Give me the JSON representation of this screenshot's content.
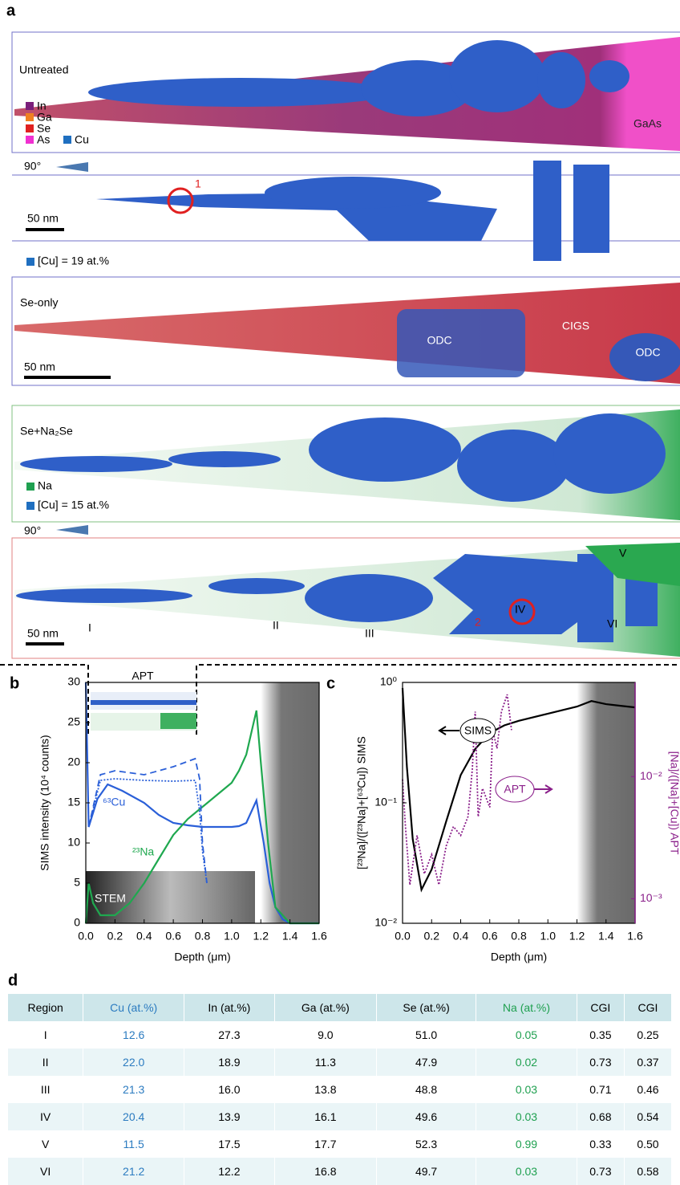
{
  "panel_a": {
    "label": "a",
    "untreated": {
      "title": "Untreated",
      "legend": [
        "In",
        "Ga",
        "Se",
        "As",
        "Cu"
      ],
      "substrate": "GaAs"
    },
    "rotation_1": "90°",
    "marker_1": "1",
    "scale_1": "50 nm",
    "cu_iso_1": "[Cu] = 19 at.%",
    "se_only": {
      "title": "Se-only",
      "labels": [
        "ODC",
        "CIGS",
        "ODC"
      ],
      "scale": "50 nm"
    },
    "se_na": {
      "title": "Se+Na₂Se",
      "legend": [
        "Na",
        "[Cu] = 15 at.%"
      ],
      "rotation": "90°",
      "regions": [
        "I",
        "II",
        "III",
        "IV",
        "V",
        "VI"
      ],
      "marker": "2",
      "scale": "50 nm"
    }
  },
  "chart_data": [
    {
      "type": "line",
      "label": "b",
      "xlabel": "Depth (μm)",
      "ylabel": "SIMS intensity (10⁴ counts)",
      "xlim": [
        0,
        1.6
      ],
      "xticks": [
        {
          "value": 0,
          "label": "0.0"
        },
        0.2,
        0.4,
        0.6,
        0.8,
        {
          "value": 1,
          "label": "1.0"
        },
        1.2,
        1.4,
        1.6
      ],
      "ylim": [
        0,
        30
      ],
      "yticks": [
        0,
        5,
        10,
        15,
        20,
        25,
        30
      ],
      "shaded_xrange": [
        1.2,
        1.6
      ],
      "annotations": {
        "apt": "APT",
        "stem": "STEM"
      },
      "series": [
        {
          "name": "⁶³Cu",
          "color": "#2a5fd8",
          "dash": "solid",
          "x": [
            0,
            0.02,
            0.08,
            0.15,
            0.25,
            0.4,
            0.5,
            0.6,
            0.7,
            0.8,
            0.9,
            1.0,
            1.05,
            1.1,
            1.17,
            1.22,
            1.26,
            1.3,
            1.35,
            1.4,
            1.6
          ],
          "values": [
            30,
            12,
            15.5,
            17.3,
            16.5,
            15,
            13.5,
            12.5,
            12.2,
            12,
            12,
            12,
            12.1,
            12.5,
            15.3,
            10,
            5,
            2,
            0.5,
            0,
            0
          ]
        },
        {
          "name": "²³Na",
          "color": "#1fa84f",
          "dash": "solid",
          "x": [
            0,
            0.02,
            0.05,
            0.1,
            0.2,
            0.3,
            0.4,
            0.5,
            0.6,
            0.7,
            0.8,
            0.9,
            1.0,
            1.05,
            1.1,
            1.17,
            1.2,
            1.25,
            1.3,
            1.4,
            1.6
          ],
          "values": [
            0,
            5,
            2.5,
            1,
            1,
            2.5,
            5,
            8,
            11,
            13,
            14.5,
            16,
            17.5,
            19,
            21,
            26.5,
            20,
            10,
            2,
            0,
            0
          ]
        },
        {
          "color": "#2a5fd8",
          "dash": "dashed",
          "x": [
            0.02,
            0.1,
            0.2,
            0.4,
            0.6,
            0.75,
            0.78,
            0.8,
            0.83
          ],
          "values": [
            12,
            18.5,
            19,
            18.5,
            19.5,
            20.5,
            18,
            10,
            5
          ]
        },
        {
          "color": "#2a5fd8",
          "dash": "dotted",
          "x": [
            0.02,
            0.1,
            0.2,
            0.4,
            0.6,
            0.75,
            0.78,
            0.8,
            0.83
          ],
          "values": [
            12,
            17.8,
            18,
            17.8,
            17.7,
            17.8,
            14,
            9,
            5
          ]
        }
      ]
    },
    {
      "type": "line",
      "label": "c",
      "xlabel": "Depth (μm)",
      "ylabel": "[²³Na]/([²³Na]+[⁶³Cu]) SIMS",
      "y2label": "[Na]/([Na]+[Cu]) APT",
      "log_scale": true,
      "xlim": [
        0,
        1.6
      ],
      "xticks": [
        {
          "value": 0,
          "label": "0.0"
        },
        0.2,
        0.4,
        0.6,
        0.8,
        {
          "value": 1,
          "label": "1.0"
        },
        1.2,
        1.4,
        1.6
      ],
      "ylim": [
        0.01,
        1
      ],
      "yticks": [
        {
          "value": 0.01,
          "label": "10⁻²"
        },
        {
          "value": 0.1,
          "label": "10⁻¹"
        },
        {
          "value": 1,
          "label": "10⁰"
        }
      ],
      "y2lim": [
        0.00063,
        0.059
      ],
      "y2ticks": [
        {
          "value": 0.001,
          "label": "10⁻³"
        },
        {
          "value": 0.01,
          "label": "10⁻²"
        }
      ],
      "shaded_xrange": [
        1.2,
        1.6
      ],
      "series": [
        {
          "name": "SIMS",
          "color": "#000000",
          "dash": "solid",
          "x": [
            0,
            0.03,
            0.07,
            0.13,
            0.2,
            0.3,
            0.4,
            0.5,
            0.6,
            0.7,
            0.8,
            1.0,
            1.2,
            1.3,
            1.4,
            1.5,
            1.6
          ],
          "values": [
            0.9,
            0.2,
            0.05,
            0.019,
            0.028,
            0.07,
            0.17,
            0.28,
            0.38,
            0.44,
            0.48,
            0.55,
            0.63,
            0.7,
            0.66,
            0.64,
            0.62
          ]
        },
        {
          "name": "APT",
          "color": "#8a1f8a",
          "dash": "dotted",
          "axis": "y2",
          "x": [
            0,
            0.02,
            0.05,
            0.1,
            0.15,
            0.2,
            0.25,
            0.3,
            0.35,
            0.4,
            0.45,
            0.48,
            0.5,
            0.52,
            0.55,
            0.6,
            0.62,
            0.65,
            0.68,
            0.72,
            0.75
          ],
          "values": [
            0.0095,
            0.0039,
            0.0013,
            0.0033,
            0.0016,
            0.0023,
            0.0013,
            0.0027,
            0.0039,
            0.0033,
            0.0047,
            0.0115,
            0.034,
            0.0047,
            0.008,
            0.0056,
            0.024,
            0.017,
            0.034,
            0.047,
            0.024
          ]
        }
      ]
    }
  ],
  "panel_d": {
    "label": "d",
    "column_colors": [
      null,
      "#2b7bc0",
      null,
      null,
      null,
      "#1fa050",
      null,
      null
    ],
    "header": [
      "Region",
      "Cu (at.%)",
      "In (at.%)",
      "Ga (at.%)",
      "Se (at.%)",
      "Na (at.%)",
      "CGI",
      "CGI"
    ],
    "rows": [
      [
        "I",
        "12.6",
        "27.3",
        "9.0",
        "51.0",
        "0.05",
        "0.35",
        "0.25"
      ],
      [
        "II",
        "22.0",
        "18.9",
        "11.3",
        "47.9",
        "0.02",
        "0.73",
        "0.37"
      ],
      [
        "III",
        "21.3",
        "16.0",
        "13.8",
        "48.8",
        "0.03",
        "0.71",
        "0.46"
      ],
      [
        "IV",
        "20.4",
        "13.9",
        "16.1",
        "49.6",
        "0.03",
        "0.68",
        "0.54"
      ],
      [
        "V",
        "11.5",
        "17.5",
        "17.7",
        "52.3",
        "0.99",
        "0.33",
        "0.50"
      ],
      [
        "VI",
        "21.2",
        "12.2",
        "16.8",
        "49.7",
        "0.03",
        "0.73",
        "0.58"
      ]
    ]
  }
}
